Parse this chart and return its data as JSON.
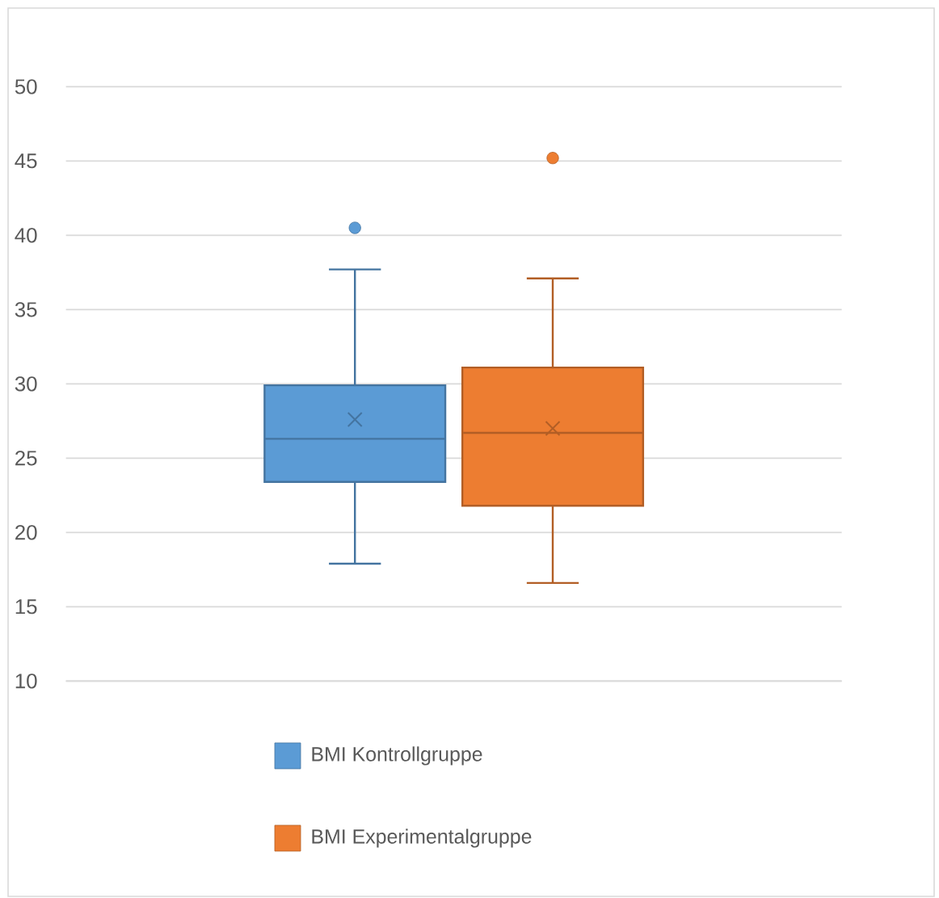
{
  "chart_data": {
    "type": "box",
    "categories": [
      null
    ],
    "series": [
      {
        "name": "BMI Kontrollgruppe",
        "color": "#5b9bd5",
        "boxes": [
          {
            "low": 17.9,
            "q1": 23.4,
            "median": 26.3,
            "q3": 29.9,
            "high": 37.7,
            "mean": 27.6,
            "outliers": [
              40.5
            ]
          }
        ]
      },
      {
        "name": "BMI Experimentalgruppe",
        "color": "#ed7d31",
        "boxes": [
          {
            "low": 16.6,
            "q1": 21.8,
            "median": 26.7,
            "q3": 31.1,
            "high": 37.1,
            "mean": 27.0,
            "outliers": [
              45.2
            ]
          }
        ]
      }
    ],
    "ylim": [
      10,
      50
    ],
    "yticks": [
      10,
      15,
      20,
      25,
      30,
      35,
      40,
      45,
      50
    ],
    "grid": "y",
    "legend": "bottom"
  }
}
